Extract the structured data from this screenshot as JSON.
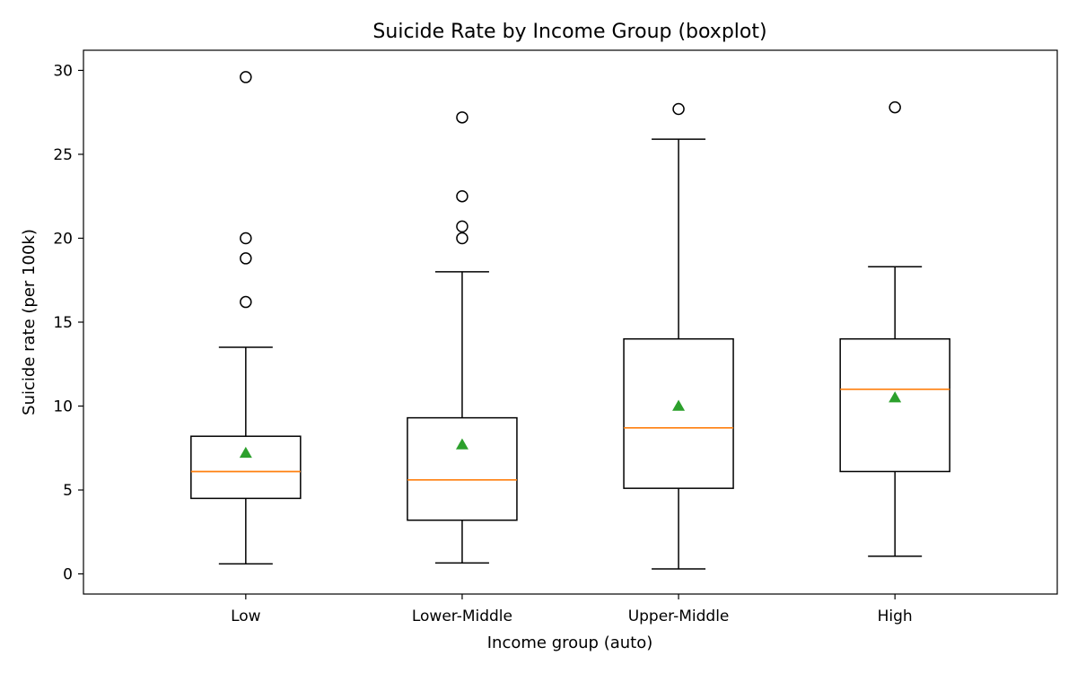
{
  "chart_data": {
    "type": "boxplot",
    "title": "Suicide Rate by Income Group (boxplot)",
    "xlabel": "Income group (auto)",
    "ylabel": "Suicide rate (per 100k)",
    "ylim": [
      -1.2,
      31.2
    ],
    "yticks": [
      0,
      5,
      10,
      15,
      20,
      25,
      30
    ],
    "grid": false,
    "categories": [
      "Low",
      "Lower-Middle",
      "Upper-Middle",
      "High"
    ],
    "boxes": [
      {
        "category": "Low",
        "whisker_low": 0.6,
        "q1": 4.5,
        "median": 6.1,
        "q3": 8.2,
        "whisker_high": 13.5,
        "mean": 7.2,
        "outliers": [
          16.2,
          18.8,
          20.0,
          29.6
        ]
      },
      {
        "category": "Lower-Middle",
        "whisker_low": 0.65,
        "q1": 3.2,
        "median": 5.6,
        "q3": 9.3,
        "whisker_high": 18.0,
        "mean": 7.7,
        "outliers": [
          20.0,
          20.7,
          22.5,
          27.2
        ]
      },
      {
        "category": "Upper-Middle",
        "whisker_low": 0.3,
        "q1": 5.1,
        "median": 8.7,
        "q3": 14.0,
        "whisker_high": 25.9,
        "mean": 10.0,
        "outliers": [
          27.7
        ]
      },
      {
        "category": "High",
        "whisker_low": 1.05,
        "q1": 6.1,
        "median": 11.0,
        "q3": 14.0,
        "whisker_high": 18.3,
        "mean": 10.5,
        "outliers": [
          27.8
        ]
      }
    ],
    "colors": {
      "box": "#000000",
      "median": "#ff7f0e",
      "mean": "#2ca02c",
      "outlier_edge": "#000000"
    }
  }
}
